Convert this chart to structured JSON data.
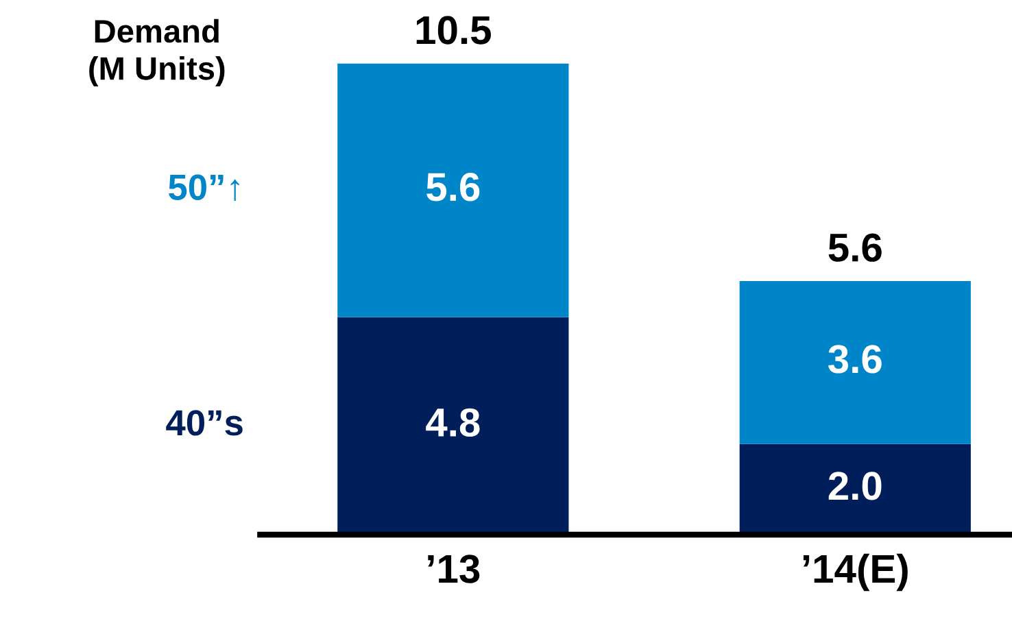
{
  "chart_data": {
    "type": "bar",
    "stacked": true,
    "ylabel": "Demand\n(M Units)",
    "categories": [
      "’13",
      "’14(E)"
    ],
    "series": [
      {
        "name": "40”s",
        "color": "#001e5a",
        "values": [
          4.8,
          2.0
        ],
        "value_labels": [
          "4.8",
          "2.0"
        ]
      },
      {
        "name": "50”↑",
        "color": "#0085c8",
        "values": [
          5.6,
          3.6
        ],
        "value_labels": [
          "5.6",
          "3.6"
        ]
      }
    ],
    "totals": [
      "10.5",
      "5.6"
    ],
    "legend": false,
    "grid": false,
    "tick_labels": "x"
  }
}
